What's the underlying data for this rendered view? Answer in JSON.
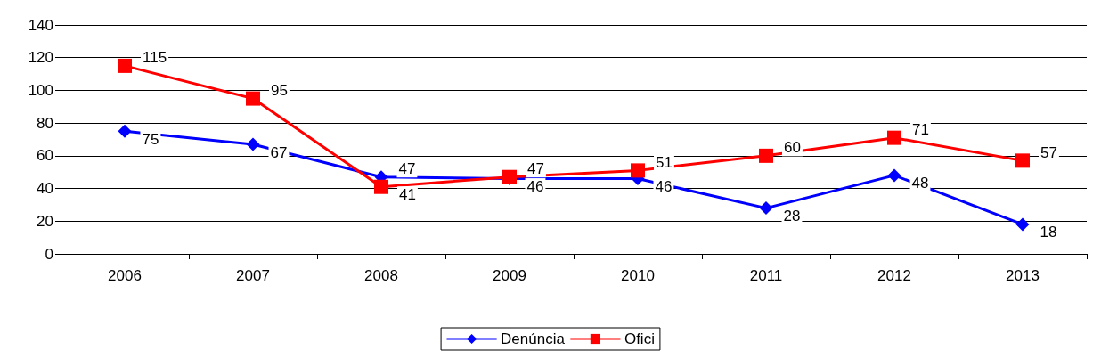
{
  "chart_data": {
    "type": "line",
    "categories": [
      "2006",
      "2007",
      "2008",
      "2009",
      "2010",
      "2011",
      "2012",
      "2013"
    ],
    "series": [
      {
        "name": "Denúncia",
        "color": "#0000ff",
        "marker": "diamond",
        "values": [
          75,
          67,
          47,
          46,
          46,
          28,
          48,
          18
        ]
      },
      {
        "name": "Ofici",
        "color": "#ff0000",
        "marker": "square",
        "values": [
          115,
          95,
          41,
          47,
          51,
          60,
          71,
          57
        ]
      }
    ],
    "ylim": [
      0,
      140
    ],
    "yticks": [
      0,
      20,
      40,
      60,
      80,
      100,
      120,
      140
    ],
    "grid": "y",
    "legend": "bottom",
    "data_labels": true
  }
}
